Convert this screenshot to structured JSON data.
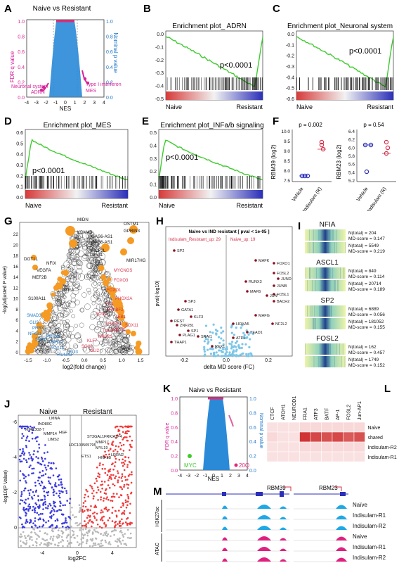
{
  "panels": {
    "A": {
      "label": "A",
      "title": "Naive  vs Resistant",
      "left_axis": "FDR q value",
      "right_axis": "Nominal p value",
      "xlabel": "NES",
      "left_ticks": [
        "1.0",
        "0.8",
        "0.6",
        "0.4",
        "0.2",
        "0.0"
      ],
      "right_ticks": [
        "1.0",
        "0.8",
        "0.6",
        "0.4",
        "0.2",
        "0.0"
      ],
      "x_ticks": [
        "-4",
        "-3",
        "-2",
        "-1",
        "0",
        "1",
        "2",
        "3",
        "4"
      ],
      "annotations": [
        "Neuronal system",
        "ADRN",
        "Type I interferon",
        "MES"
      ]
    },
    "B": {
      "label": "B",
      "title": "Enrichment plot_ ADRN",
      "pvalue": "p<0.0001",
      "left": "Naive",
      "right": "Resistant",
      "y_ticks": [
        "0.0",
        "-0.1",
        "-0.2",
        "-0.3",
        "-0.4",
        "-0.5"
      ]
    },
    "C": {
      "label": "C",
      "title": "Enrichment plot_Neuronal system",
      "pvalue": "p<0.0001",
      "left": "Naive",
      "right": "Resistant",
      "y_ticks": [
        "0.0",
        "-0.1",
        "-0.2",
        "-0.3",
        "-0.4",
        "-0.5",
        "-0.6"
      ]
    },
    "D": {
      "label": "D",
      "title": "Enrichment plot_MES",
      "pvalue": "p<0.0001",
      "left": "Naive",
      "right": "Resistant",
      "y_ticks": [
        "0.6",
        "0.5",
        "0.4",
        "0.3",
        "0.2",
        "0.1",
        "0.0"
      ]
    },
    "E": {
      "label": "E",
      "title": "Enrichment plot_INFa/b signaling",
      "pvalue": "p<0.0001",
      "left": "Naive",
      "right": "Resistant",
      "y_ticks": [
        "0.5",
        "0.4",
        "0.3",
        "0.2",
        "0.1",
        "0.0"
      ]
    },
    "F": {
      "label": "F",
      "left": {
        "ylabel": "RBM39 (log2)",
        "pvalue": "p = 0.002",
        "y_ticks": [
          "10.0",
          "9.5",
          "9.0",
          "8.5",
          "8.0",
          "7.5"
        ],
        "groups": [
          "Vehicle",
          "Indisulam (R)"
        ]
      },
      "right": {
        "ylabel": "RBM23 (log2)",
        "pvalue": "p = 0.54",
        "y_ticks": [
          "6.4",
          "6.2",
          "6.0",
          "5.8",
          "5.6",
          "5.4",
          "5.2"
        ],
        "groups": [
          "Vehicle",
          "Indisulam (R)"
        ]
      }
    },
    "G": {
      "label": "G",
      "xlabel": "log2(fold change)",
      "ylabel": "-log(adjusted P value)",
      "x_ticks": [
        "-1.5",
        "-1.0",
        "-0.5",
        "0.0",
        "0.5",
        "1.0",
        "1.5"
      ],
      "y_ticks": [
        "22",
        "20",
        "18",
        "16",
        "14",
        "12",
        "10",
        "8",
        "6",
        "4",
        "2",
        "0"
      ],
      "black_labels": [
        "MIDN",
        "KDM4B",
        "GAS6-AS1",
        "GAS6-AS1",
        "OSTM1",
        "GPRIN3",
        "MCF2L",
        "SLC25A1",
        "MIR17HG",
        "DOT1L",
        "NFIX",
        "VEGFA",
        "MEF2B",
        "RXRA",
        "S100A11"
      ],
      "blue_labels": [
        "SMAD3",
        "GLI3",
        "PRRX1",
        "NFKB1",
        "SOX6",
        "PRRX1",
        "PRRX1",
        "SOX11",
        "RUNX3",
        "GLI3"
      ],
      "red_labels": [
        "MYCNOS",
        "FOXO3",
        "FOXO1",
        "PHOX2A",
        "FLI1",
        "SREBF2",
        "SOX4",
        "ZEB1",
        "SREBF1",
        "SOX11",
        "CREB5",
        "TWIST1",
        "NR3C1",
        "KLF7",
        "SOX2",
        "GLI2"
      ]
    },
    "H": {
      "label": "H",
      "title": "Naive vs IND resistant [ pval < 1e-05 ]",
      "left_note": "Indisulam_Resistant_up: 29",
      "right_note": "Naive_up: 19",
      "xlabel": "delta MD score (FC)",
      "ylabel": "pval(-log10)",
      "x_ticks": [
        "-0.2",
        "0.0",
        "0.2"
      ],
      "labels": [
        "SP2",
        "FOXO1",
        "MAFK",
        "FOSL2",
        "JUND",
        "RUNX3",
        "JUNB",
        "MAFB",
        "JUN",
        "FOSL1",
        "BACH2",
        "SP3",
        "MAFG",
        "GATA1",
        "NF2L2",
        "REST",
        "ZNF281",
        "KLF3",
        "SP1",
        "PLAG1",
        "THAP1",
        "SNAI1",
        "HOXA5",
        "TEAD1",
        "ATF1",
        "REX1"
      ]
    },
    "I": {
      "label": "I",
      "motifs": [
        {
          "name": "NFIA",
          "top": [
            "N(total) = 204",
            "MD-score = 0.147"
          ],
          "bottom": [
            "N(total) = 5549",
            "MD-score = 0.219"
          ]
        },
        {
          "name": "ASCL1",
          "top": [
            "N(total) = 849",
            "MD-score = 0.114"
          ],
          "bottom": [
            "N(total) = 20714",
            "MD-score = 0.189"
          ]
        },
        {
          "name": "SP2",
          "top": [
            "N(total) = 6889",
            "MD-score = 0.056"
          ],
          "bottom": [
            "N(total) = 181052",
            "MD-score = 0.155"
          ]
        },
        {
          "name": "FOSL2",
          "top": [
            "N(total) = 162",
            "MD-score = 0.457"
          ],
          "bottom": [
            "N(total) = 1749",
            "MD-score = 0.152"
          ]
        }
      ]
    },
    "J": {
      "label": "J",
      "naive": "Naive",
      "resistant": "Resistant",
      "xlabel": "log2FC",
      "ylabel": "-log10(P Value)",
      "x_ticks": [
        "-4",
        "0",
        "4"
      ],
      "y_ticks": [
        "-6",
        "-4",
        "-2",
        "0"
      ],
      "left_labels": [
        "LMNA",
        "INO80C",
        "MIR1302-7",
        "MMP14",
        "HGF",
        "LIMS2"
      ],
      "right_labels": [
        "ST3GAL1",
        "FRK/ATF4",
        "MMP17",
        "MYL19",
        "LRRN2",
        "LDC100505795",
        "ETS1",
        "HNF1B"
      ]
    },
    "K": {
      "label": "K",
      "title": "Naive  vs Resistant",
      "left_axis": "FDR q value",
      "right_axis": "Nominal p value",
      "xlabel": "NES",
      "left_ticks": [
        "1.0",
        "0.8",
        "0.6",
        "0.4",
        "0.2",
        "0.0"
      ],
      "right_ticks": [
        "1.0",
        "0.8",
        "0.6",
        "0.4",
        "0.2",
        "0.0"
      ],
      "x_ticks": [
        "-4",
        "-3",
        "-2",
        "-1",
        "0",
        "1",
        "2",
        "3",
        "4"
      ],
      "annotations": [
        "MYC",
        "20Q"
      ]
    },
    "L": {
      "label": "L",
      "columns": [
        "CTCF",
        "ATOH1",
        "NEUROD1",
        "FRA1",
        "ATF3",
        "BATF",
        "AP-1",
        "FOSL2",
        "Jun-AP1"
      ],
      "rows": [
        "Naive",
        "shared",
        "Indisulam-R2",
        "Indisulam-R1"
      ],
      "heatmap": [
        [
          0.05,
          0.05,
          0.05,
          0.1,
          0.1,
          0.1,
          0.1,
          0.1,
          0.1
        ],
        [
          0.1,
          0.05,
          0.05,
          0.95,
          0.85,
          0.8,
          0.85,
          0.75,
          0.8
        ],
        [
          0.05,
          0.05,
          0.05,
          0.1,
          0.1,
          0.1,
          0.1,
          0.1,
          0.1
        ],
        [
          0.05,
          0.05,
          0.05,
          0.05,
          0.05,
          0.05,
          0.05,
          0.05,
          0.05
        ]
      ]
    },
    "M": {
      "label": "M",
      "gene1": "RBM39",
      "gene2": "RBM23",
      "group1": "H3K27ac",
      "group2": "ATAC",
      "tracks": [
        "Naïve",
        "Indisulam-R1",
        "Indisulam-R2",
        "Naive",
        "Indisulam-R1",
        "Indisulam-R2"
      ]
    }
  },
  "colors": {
    "red": "#d6324a",
    "blue": "#1f78c8",
    "green": "#3ecb2e",
    "magenta": "#d6229a",
    "orange": "#f59a23",
    "heat_high": "#cf2a2a",
    "heat_low": "#fbe3e3",
    "cyan_track": "#1ea8e6",
    "pink_track": "#e0207f"
  }
}
